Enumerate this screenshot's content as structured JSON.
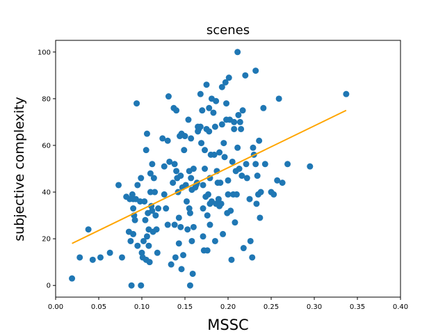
{
  "chart_data": {
    "type": "scatter",
    "title": "scenes",
    "xlabel": "MSSC",
    "ylabel": "subjective complexity",
    "xlim": [
      0.0,
      0.4
    ],
    "ylim": [
      -5,
      105
    ],
    "xticks": [
      "0.00",
      "0.05",
      "0.10",
      "0.15",
      "0.20",
      "0.25",
      "0.30",
      "0.35",
      "0.40"
    ],
    "yticks": [
      "0",
      "20",
      "40",
      "60",
      "80",
      "100"
    ],
    "grid": false,
    "colors": {
      "points": "#1f77b4",
      "fit_line": "#ffa500"
    },
    "fit_line": {
      "x": [
        0.019,
        0.337
      ],
      "y": [
        18,
        75
      ]
    },
    "series": [
      {
        "points": [
          [
            0.019,
            3
          ],
          [
            0.028,
            12
          ],
          [
            0.038,
            24
          ],
          [
            0.043,
            11
          ],
          [
            0.052,
            12
          ],
          [
            0.063,
            14
          ],
          [
            0.073,
            43
          ],
          [
            0.077,
            12
          ],
          [
            0.082,
            38
          ],
          [
            0.085,
            23
          ],
          [
            0.086,
            37
          ],
          [
            0.087,
            19
          ],
          [
            0.088,
            0
          ],
          [
            0.089,
            39
          ],
          [
            0.09,
            22
          ],
          [
            0.09,
            37
          ],
          [
            0.09,
            33
          ],
          [
            0.091,
            30
          ],
          [
            0.092,
            28
          ],
          [
            0.093,
            37
          ],
          [
            0.094,
            78
          ],
          [
            0.095,
            17
          ],
          [
            0.095,
            43
          ],
          [
            0.098,
            36
          ],
          [
            0.099,
            0
          ],
          [
            0.099,
            46
          ],
          [
            0.1,
            14
          ],
          [
            0.101,
            12
          ],
          [
            0.102,
            19
          ],
          [
            0.103,
            36
          ],
          [
            0.104,
            28
          ],
          [
            0.105,
            11
          ],
          [
            0.105,
            58
          ],
          [
            0.106,
            65
          ],
          [
            0.106,
            21
          ],
          [
            0.107,
            31
          ],
          [
            0.108,
            17
          ],
          [
            0.108,
            24
          ],
          [
            0.109,
            10
          ],
          [
            0.11,
            48
          ],
          [
            0.11,
            40
          ],
          [
            0.111,
            34
          ],
          [
            0.112,
            52
          ],
          [
            0.112,
            32
          ],
          [
            0.113,
            23
          ],
          [
            0.114,
            46
          ],
          [
            0.115,
            40
          ],
          [
            0.116,
            30
          ],
          [
            0.117,
            24
          ],
          [
            0.118,
            14
          ],
          [
            0.119,
            33
          ],
          [
            0.124,
            63
          ],
          [
            0.126,
            51
          ],
          [
            0.126,
            39
          ],
          [
            0.128,
            33
          ],
          [
            0.13,
            62
          ],
          [
            0.13,
            26
          ],
          [
            0.131,
            81
          ],
          [
            0.132,
            53
          ],
          [
            0.134,
            9
          ],
          [
            0.136,
            44
          ],
          [
            0.137,
            76
          ],
          [
            0.138,
            52
          ],
          [
            0.138,
            26
          ],
          [
            0.139,
            12
          ],
          [
            0.14,
            75
          ],
          [
            0.14,
            49
          ],
          [
            0.141,
            46
          ],
          [
            0.142,
            40
          ],
          [
            0.143,
            29
          ],
          [
            0.143,
            18
          ],
          [
            0.144,
            64
          ],
          [
            0.145,
            47
          ],
          [
            0.145,
            25
          ],
          [
            0.146,
            65
          ],
          [
            0.146,
            7
          ],
          [
            0.147,
            42
          ],
          [
            0.148,
            13
          ],
          [
            0.149,
            58
          ],
          [
            0.15,
            64
          ],
          [
            0.151,
            43
          ],
          [
            0.152,
            36
          ],
          [
            0.153,
            24
          ],
          [
            0.154,
            71
          ],
          [
            0.155,
            33
          ],
          [
            0.155,
            49
          ],
          [
            0.156,
            0
          ],
          [
            0.156,
            31
          ],
          [
            0.157,
            63
          ],
          [
            0.157,
            46
          ],
          [
            0.158,
            41
          ],
          [
            0.158,
            19
          ],
          [
            0.159,
            5
          ],
          [
            0.16,
            25
          ],
          [
            0.16,
            50
          ],
          [
            0.162,
            42
          ],
          [
            0.163,
            43
          ],
          [
            0.164,
            44
          ],
          [
            0.165,
            68
          ],
          [
            0.165,
            66
          ],
          [
            0.166,
            67
          ],
          [
            0.168,
            68
          ],
          [
            0.168,
            82
          ],
          [
            0.169,
            61
          ],
          [
            0.17,
            75
          ],
          [
            0.171,
            43
          ],
          [
            0.171,
            33
          ],
          [
            0.171,
            21
          ],
          [
            0.172,
            15
          ],
          [
            0.173,
            50
          ],
          [
            0.173,
            58
          ],
          [
            0.174,
            38
          ],
          [
            0.175,
            67
          ],
          [
            0.175,
            86
          ],
          [
            0.176,
            15
          ],
          [
            0.176,
            30
          ],
          [
            0.177,
            39
          ],
          [
            0.178,
            76
          ],
          [
            0.178,
            66
          ],
          [
            0.179,
            46
          ],
          [
            0.179,
            35
          ],
          [
            0.179,
            26
          ],
          [
            0.18,
            56
          ],
          [
            0.181,
            80
          ],
          [
            0.181,
            36
          ],
          [
            0.183,
            74
          ],
          [
            0.184,
            56
          ],
          [
            0.185,
            68
          ],
          [
            0.185,
            19
          ],
          [
            0.186,
            79
          ],
          [
            0.186,
            35
          ],
          [
            0.187,
            49
          ],
          [
            0.188,
            44
          ],
          [
            0.189,
            37
          ],
          [
            0.19,
            34
          ],
          [
            0.19,
            57
          ],
          [
            0.191,
            44
          ],
          [
            0.192,
            35
          ],
          [
            0.193,
            69
          ],
          [
            0.193,
            85
          ],
          [
            0.194,
            22
          ],
          [
            0.195,
            61
          ],
          [
            0.196,
            55
          ],
          [
            0.197,
            87
          ],
          [
            0.198,
            78
          ],
          [
            0.198,
            71
          ],
          [
            0.199,
            31
          ],
          [
            0.2,
            45
          ],
          [
            0.2,
            39
          ],
          [
            0.201,
            89
          ],
          [
            0.202,
            71
          ],
          [
            0.203,
            32
          ],
          [
            0.204,
            11
          ],
          [
            0.205,
            53
          ],
          [
            0.206,
            39
          ],
          [
            0.207,
            67
          ],
          [
            0.207,
            70
          ],
          [
            0.208,
            27
          ],
          [
            0.209,
            49
          ],
          [
            0.21,
            39
          ],
          [
            0.211,
            100
          ],
          [
            0.211,
            59
          ],
          [
            0.212,
            73
          ],
          [
            0.213,
            50
          ],
          [
            0.214,
            70
          ],
          [
            0.215,
            67
          ],
          [
            0.216,
            47
          ],
          [
            0.217,
            75
          ],
          [
            0.218,
            16
          ],
          [
            0.22,
            90
          ],
          [
            0.221,
            52
          ],
          [
            0.222,
            46
          ],
          [
            0.225,
            37
          ],
          [
            0.226,
            19
          ],
          [
            0.228,
            12
          ],
          [
            0.229,
            59
          ],
          [
            0.23,
            56
          ],
          [
            0.232,
            92
          ],
          [
            0.232,
            52
          ],
          [
            0.233,
            35
          ],
          [
            0.234,
            47
          ],
          [
            0.235,
            39
          ],
          [
            0.236,
            62
          ],
          [
            0.237,
            29
          ],
          [
            0.238,
            40
          ],
          [
            0.241,
            76
          ],
          [
            0.243,
            52
          ],
          [
            0.25,
            40
          ],
          [
            0.253,
            39
          ],
          [
            0.257,
            45
          ],
          [
            0.259,
            80
          ],
          [
            0.263,
            44
          ],
          [
            0.269,
            52
          ],
          [
            0.295,
            51
          ],
          [
            0.337,
            82
          ]
        ]
      }
    ]
  }
}
